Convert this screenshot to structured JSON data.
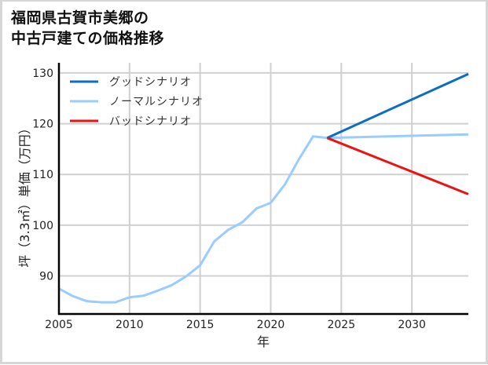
{
  "title": {
    "line1": "福岡県古賀市美郷の",
    "line2": "中古戸建ての価格推移"
  },
  "axes": {
    "xlabel": "年",
    "ylabel": "坪（3.3㎡）単価（万円）",
    "xticks": [
      "2005",
      "2010",
      "2015",
      "2020",
      "2025",
      "2030"
    ],
    "yticks": [
      "90",
      "100",
      "110",
      "120",
      "130"
    ]
  },
  "legend": [
    {
      "label": "グッドシナリオ",
      "color": "#0a6fc2"
    },
    {
      "label": "ノーマルシナリオ",
      "color": "#99ccff"
    },
    {
      "label": "バッドシナリオ",
      "color": "#ee1111"
    }
  ],
  "chart_data": {
    "type": "line",
    "title": "福岡県古賀市美郷の中古戸建ての価格推移",
    "xlabel": "年",
    "ylabel": "坪（3.3㎡）単価（万円）",
    "xlim": [
      2005,
      2034
    ],
    "ylim": [
      82.5,
      132
    ],
    "grid": true,
    "legend_position": "upper left",
    "series": [
      {
        "name": "ノーマルシナリオ",
        "color": "#99ccff",
        "x": [
          2005,
          2006,
          2007,
          2008,
          2009,
          2010,
          2011,
          2012,
          2013,
          2014,
          2015,
          2016,
          2017,
          2018,
          2019,
          2020,
          2021,
          2022,
          2023,
          2024,
          2034
        ],
        "values": [
          87.5,
          86.0,
          85.0,
          84.8,
          84.8,
          85.8,
          86.1,
          87.1,
          88.2,
          89.9,
          92.1,
          96.8,
          99.1,
          100.6,
          103.3,
          104.4,
          108.0,
          113.0,
          117.5,
          117.2,
          117.9
        ]
      },
      {
        "name": "グッドシナリオ",
        "color": "#0a6fc2",
        "x": [
          2024,
          2034
        ],
        "values": [
          117.2,
          129.8
        ]
      },
      {
        "name": "バッドシナリオ",
        "color": "#ee1111",
        "x": [
          2024,
          2034
        ],
        "values": [
          117.2,
          106.1
        ]
      }
    ]
  }
}
